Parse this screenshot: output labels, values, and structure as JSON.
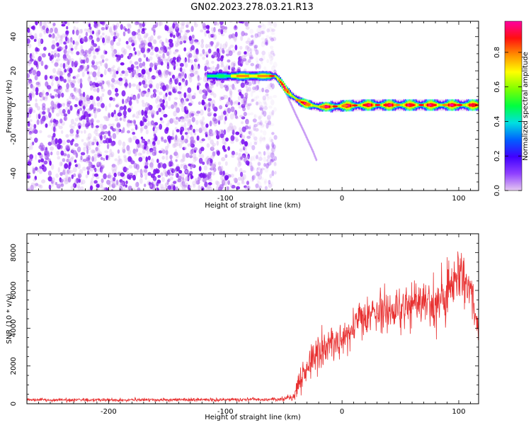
{
  "title": "GN02.2023.278.03.21.R13",
  "chart_data": [
    {
      "type": "heatmap",
      "title": "GN02.2023.278.03.21.R13",
      "xlabel": "Height of straight line (km)",
      "ylabel": "Frequency (Hz)",
      "xlim": [
        -270,
        117
      ],
      "ylim": [
        -50,
        49
      ],
      "xticks": [
        -200,
        -100,
        0,
        100
      ],
      "yticks": [
        -40,
        -20,
        0,
        20,
        40
      ],
      "colorbar": {
        "label": "Normalized spectral amplitude",
        "range": [
          0.0,
          0.98
        ],
        "ticks": [
          0.0,
          0.2,
          0.4,
          0.6,
          0.8
        ],
        "colormap": [
          "#e5c8f0",
          "#8000ff",
          "#0020ff",
          "#00d0ff",
          "#00ff60",
          "#c0ff00",
          "#ffff00",
          "#ff8000",
          "#ff0000",
          "#ff00a0"
        ]
      },
      "noise_region_x": [
        -270,
        -57
      ],
      "ridge": {
        "x": [
          -115,
          -70,
          -57,
          -52,
          -48,
          -44,
          -40,
          -36,
          -30,
          -20,
          -10,
          0,
          20,
          40,
          60,
          80,
          100,
          117
        ],
        "y": [
          17,
          17,
          17,
          13,
          9,
          6,
          4,
          2,
          0.5,
          -1,
          -1,
          -0.5,
          0,
          0,
          0,
          0,
          0,
          0
        ]
      },
      "branch": {
        "x": [
          -48,
          -40,
          -33,
          -25,
          -22
        ],
        "y": [
          7,
          -5,
          -15,
          -27,
          -32
        ]
      }
    },
    {
      "type": "line",
      "xlabel": "Height of straight line (km)",
      "ylabel": "SNR (10 * v/v)",
      "xlim": [
        -270,
        117
      ],
      "ylim": [
        0,
        9000
      ],
      "xticks": [
        -200,
        -100,
        0,
        100
      ],
      "yticks": [
        0,
        2000,
        4000,
        6000,
        8000
      ],
      "line_color": "#e83030",
      "envelope": {
        "x": [
          -270,
          -200,
          -100,
          -60,
          -42,
          -38,
          -30,
          -20,
          -10,
          0,
          10,
          20,
          30,
          40,
          50,
          60,
          70,
          80,
          90,
          100,
          105,
          110,
          117
        ],
        "mean": [
          200,
          200,
          210,
          230,
          300,
          900,
          2000,
          2700,
          3100,
          3400,
          4000,
          4500,
          4900,
          4900,
          5000,
          5200,
          5300,
          5400,
          6000,
          7000,
          6800,
          6200,
          3900
        ],
        "spread": [
          90,
          90,
          90,
          100,
          150,
          500,
          900,
          1000,
          1000,
          1000,
          1100,
          1200,
          1200,
          1200,
          1100,
          1100,
          1200,
          1300,
          1500,
          1500,
          1400,
          1200,
          600
        ]
      }
    }
  ]
}
